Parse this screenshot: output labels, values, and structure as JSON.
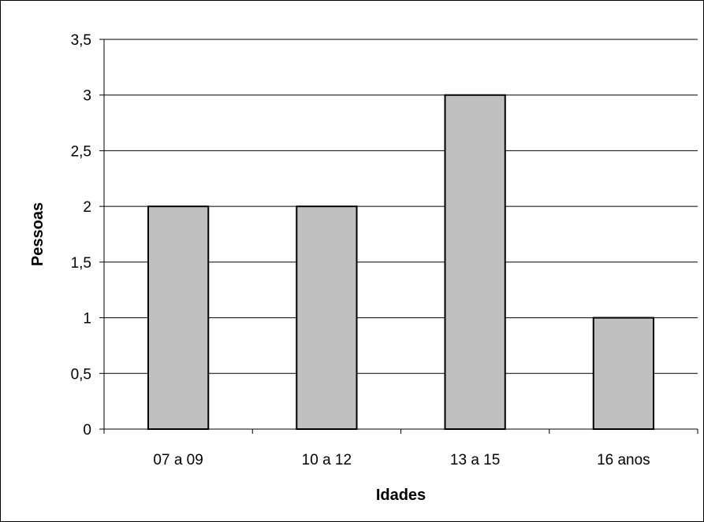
{
  "chart_data": {
    "type": "bar",
    "categories": [
      "07 a 09",
      "10 a 12",
      "13 a 15",
      "16 anos"
    ],
    "values": [
      2,
      2,
      3,
      1
    ],
    "title": "",
    "xlabel": "Idades",
    "ylabel": "Pessoas",
    "ylim": [
      0,
      3.5
    ],
    "yticks": [
      0,
      0.5,
      1,
      1.5,
      2,
      2.5,
      3,
      3.5
    ],
    "ytick_labels": [
      "0",
      "0,5",
      "1",
      "1,5",
      "2",
      "2,5",
      "3",
      "3,5"
    ],
    "grid": "horizontal",
    "legend": "none",
    "colors": {
      "bar_fill": "#c0c0c0",
      "bar_stroke": "#000000",
      "gridline": "#000000",
      "background": "#ffffff"
    }
  }
}
